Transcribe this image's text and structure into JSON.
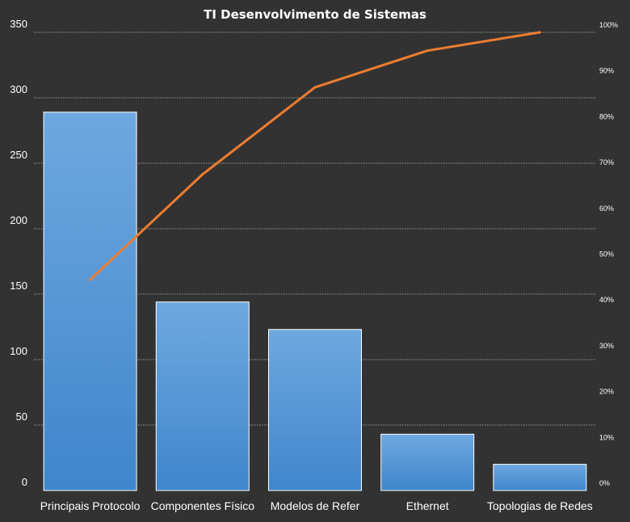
{
  "chart_data": {
    "type": "bar",
    "title": "TI Desenvolvimento  de Sistemas",
    "categories": [
      "Principais Protocolo",
      "Componentes  Físico",
      "Modelos de Refer",
      "Ethernet",
      "Topologias de Redes"
    ],
    "series": [
      {
        "values": [
          289,
          144,
          123,
          43,
          20
        ],
        "type": "bar",
        "axis": "left",
        "color": "#5b9bd5"
      },
      {
        "values": [
          46,
          69,
          88,
          96,
          100
        ],
        "type": "line",
        "axis": "right",
        "unit": "%",
        "color": "#ed7d31"
      }
    ],
    "ylim": [
      0,
      350
    ],
    "y_ticks": [
      "0",
      "50",
      "100",
      "150",
      "200",
      "250",
      "300",
      "350"
    ],
    "y2lim": [
      0,
      100
    ],
    "y2_ticks": [
      "0%",
      "10%",
      "20%",
      "30%",
      "40%",
      "50%",
      "60%",
      "70%",
      "80%",
      "90%",
      "100%"
    ],
    "xlabel": "",
    "ylabel": "",
    "grid": true,
    "legend": "none",
    "colors": {
      "background": "#333232",
      "bar_top": "#6fa8e0",
      "bar_bottom": "#3f86cc",
      "line": "#ed7d31",
      "text": "#ffffff",
      "grid": "#9a9a9a"
    }
  }
}
